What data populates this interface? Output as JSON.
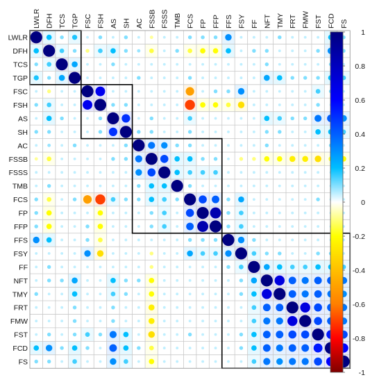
{
  "chart_data": {
    "type": "heatmap",
    "subtype": "correlation-circle-matrix",
    "variables": [
      "LWLR",
      "DFH",
      "TCS",
      "TGP",
      "FSC",
      "FSH",
      "AS",
      "SH",
      "AC",
      "FSSB",
      "FSSS",
      "TMB",
      "FCS",
      "FP",
      "FFP",
      "FFS",
      "FSY",
      "FF",
      "NFT",
      "TMY",
      "FRT",
      "FMW",
      "FST",
      "FCD",
      "FS"
    ],
    "matrix": [
      [
        1.0,
        0.2,
        0.1,
        0.18,
        0.05,
        0.1,
        0.05,
        0.1,
        0.05,
        -0.08,
        0.05,
        0.05,
        0.1,
        0.1,
        0.1,
        0.3,
        0.05,
        0.05,
        0.05,
        0.1,
        0.05,
        0.05,
        0.05,
        0.2,
        0.1
      ],
      [
        0.2,
        1.0,
        0.15,
        0.1,
        -0.1,
        0.15,
        0.2,
        0.1,
        0.08,
        -0.15,
        0.05,
        0.1,
        -0.15,
        -0.2,
        -0.2,
        0.2,
        0.05,
        0.1,
        0.1,
        0.05,
        0.05,
        0.05,
        0.1,
        0.3,
        0.1
      ],
      [
        0.1,
        0.15,
        1.0,
        0.25,
        0.05,
        0.05,
        0.1,
        0.05,
        0.05,
        0.05,
        0.05,
        0.05,
        0.05,
        0.05,
        0.05,
        0.05,
        0.05,
        0.05,
        0.1,
        0.05,
        0.05,
        0.05,
        0.05,
        0.1,
        0.05
      ],
      [
        0.18,
        0.1,
        0.25,
        1.0,
        0.05,
        0.05,
        0.05,
        0.05,
        0.1,
        0.05,
        0.05,
        0.05,
        0.1,
        0.05,
        0.05,
        0.05,
        0.05,
        0.05,
        0.25,
        0.2,
        0.1,
        0.1,
        0.1,
        0.2,
        0.15
      ],
      [
        0.05,
        -0.1,
        0.05,
        0.05,
        1.0,
        0.65,
        0.05,
        0.05,
        0.05,
        0.05,
        0.05,
        0.05,
        -0.5,
        0.05,
        0.1,
        0.1,
        0.3,
        0.05,
        0.05,
        0.05,
        0.05,
        0.05,
        0.15,
        0.1,
        0.05
      ],
      [
        0.1,
        0.15,
        0.05,
        0.05,
        0.65,
        1.0,
        0.1,
        0.1,
        0.05,
        0.05,
        0.05,
        0.05,
        -0.7,
        -0.2,
        -0.2,
        -0.15,
        -0.3,
        0.05,
        0.05,
        0.05,
        0.05,
        0.05,
        0.1,
        0.05,
        0.05
      ],
      [
        0.05,
        0.2,
        0.1,
        0.05,
        0.05,
        0.1,
        1.0,
        0.5,
        0.05,
        0.1,
        0.05,
        0.05,
        0.15,
        0.05,
        0.05,
        0.05,
        0.05,
        0.05,
        0.2,
        0.15,
        0.1,
        0.1,
        0.35,
        0.4,
        0.3
      ],
      [
        0.1,
        0.1,
        0.05,
        0.05,
        0.05,
        0.1,
        0.5,
        1.0,
        0.1,
        0.1,
        0.05,
        0.05,
        0.1,
        0.05,
        0.05,
        0.05,
        0.05,
        0.05,
        0.1,
        0.1,
        0.05,
        0.05,
        0.2,
        0.2,
        0.15
      ],
      [
        0.05,
        0.08,
        0.05,
        0.1,
        0.05,
        0.05,
        0.05,
        0.1,
        1.0,
        0.35,
        0.3,
        0.1,
        0.1,
        0.05,
        0.05,
        0.05,
        0.05,
        0.05,
        0.1,
        0.05,
        0.05,
        0.05,
        0.05,
        0.1,
        0.05
      ],
      [
        -0.08,
        -0.15,
        0.05,
        0.05,
        0.05,
        0.05,
        0.1,
        0.1,
        0.35,
        1.0,
        0.45,
        0.2,
        0.2,
        0.1,
        0.1,
        0.05,
        -0.1,
        -0.1,
        -0.2,
        -0.2,
        -0.25,
        -0.25,
        -0.3,
        -0.15,
        -0.2
      ],
      [
        0.05,
        0.05,
        0.05,
        0.05,
        0.05,
        0.05,
        0.05,
        0.05,
        0.3,
        0.45,
        1.0,
        0.2,
        0.15,
        0.15,
        0.15,
        0.05,
        0.05,
        0.05,
        0.05,
        0.05,
        0.05,
        0.05,
        0.05,
        0.05,
        0.05
      ],
      [
        0.05,
        0.1,
        0.05,
        0.05,
        0.05,
        0.05,
        0.05,
        0.05,
        0.1,
        0.2,
        0.2,
        1.0,
        0.1,
        0.05,
        0.05,
        0.05,
        0.05,
        0.05,
        0.05,
        0.05,
        0.05,
        0.05,
        0.05,
        0.05,
        0.05
      ],
      [
        0.1,
        -0.15,
        0.05,
        0.1,
        -0.5,
        -0.7,
        0.15,
        0.1,
        0.1,
        0.2,
        0.15,
        0.1,
        1.0,
        0.45,
        0.4,
        0.1,
        0.25,
        0.05,
        0.05,
        0.05,
        0.05,
        0.05,
        0.1,
        0.05,
        0.05
      ],
      [
        0.1,
        -0.2,
        0.05,
        0.05,
        0.05,
        -0.2,
        0.05,
        0.05,
        0.05,
        0.1,
        0.15,
        0.05,
        0.45,
        1.0,
        0.85,
        0.1,
        0.15,
        0.05,
        0.05,
        0.05,
        0.05,
        0.05,
        0.05,
        0.05,
        0.05
      ],
      [
        0.1,
        -0.2,
        0.05,
        0.05,
        0.1,
        -0.2,
        0.05,
        0.05,
        0.05,
        0.1,
        0.15,
        0.05,
        0.4,
        0.85,
        1.0,
        0.1,
        0.15,
        0.05,
        0.05,
        0.05,
        0.05,
        0.05,
        0.05,
        0.05,
        0.05
      ],
      [
        0.3,
        0.2,
        0.05,
        0.05,
        0.1,
        -0.15,
        0.05,
        0.05,
        0.05,
        0.05,
        0.05,
        0.05,
        0.1,
        0.1,
        0.1,
        1.0,
        0.3,
        0.1,
        0.05,
        0.05,
        0.05,
        0.05,
        0.05,
        0.05,
        0.05
      ],
      [
        0.05,
        0.05,
        0.05,
        0.05,
        0.3,
        -0.3,
        0.05,
        0.05,
        0.05,
        -0.1,
        0.05,
        0.05,
        0.25,
        0.15,
        0.15,
        0.3,
        1.0,
        0.15,
        0.1,
        0.1,
        0.05,
        0.05,
        0.1,
        0.1,
        0.05
      ],
      [
        0.05,
        0.1,
        0.05,
        0.05,
        0.05,
        0.05,
        0.05,
        0.05,
        0.05,
        -0.1,
        0.05,
        0.05,
        0.05,
        0.05,
        0.05,
        0.1,
        0.15,
        1.0,
        0.25,
        0.2,
        0.15,
        0.15,
        0.2,
        0.2,
        0.15
      ],
      [
        0.05,
        0.1,
        0.1,
        0.25,
        0.05,
        0.05,
        0.2,
        0.1,
        0.1,
        -0.2,
        0.05,
        0.05,
        0.05,
        0.05,
        0.05,
        0.05,
        0.1,
        0.25,
        1.0,
        0.7,
        0.4,
        0.35,
        0.4,
        0.4,
        0.35
      ],
      [
        0.1,
        0.05,
        0.05,
        0.2,
        0.05,
        0.05,
        0.15,
        0.1,
        0.05,
        -0.2,
        0.05,
        0.05,
        0.05,
        0.05,
        0.05,
        0.05,
        0.1,
        0.2,
        0.7,
        1.0,
        0.4,
        0.35,
        0.4,
        0.35,
        0.3
      ],
      [
        0.05,
        0.05,
        0.05,
        0.1,
        0.05,
        0.05,
        0.1,
        0.05,
        0.05,
        -0.25,
        0.05,
        0.05,
        0.05,
        0.05,
        0.05,
        0.05,
        0.05,
        0.15,
        0.4,
        0.4,
        1.0,
        0.7,
        0.45,
        0.4,
        0.35
      ],
      [
        0.05,
        0.05,
        0.05,
        0.1,
        0.05,
        0.05,
        0.1,
        0.05,
        0.05,
        -0.25,
        0.05,
        0.05,
        0.05,
        0.05,
        0.05,
        0.05,
        0.05,
        0.15,
        0.35,
        0.35,
        0.7,
        1.0,
        0.45,
        0.4,
        0.35
      ],
      [
        0.05,
        0.1,
        0.05,
        0.1,
        0.15,
        0.1,
        0.35,
        0.2,
        0.05,
        -0.3,
        0.05,
        0.05,
        0.1,
        0.05,
        0.05,
        0.05,
        0.1,
        0.2,
        0.4,
        0.4,
        0.45,
        0.45,
        1.0,
        0.55,
        0.45
      ],
      [
        0.2,
        0.3,
        0.1,
        0.2,
        0.1,
        0.05,
        0.4,
        0.2,
        0.1,
        -0.15,
        0.05,
        0.05,
        0.05,
        0.05,
        0.05,
        0.05,
        0.1,
        0.2,
        0.4,
        0.35,
        0.4,
        0.4,
        0.55,
        1.0,
        0.6
      ],
      [
        0.1,
        0.1,
        0.05,
        0.15,
        0.05,
        0.05,
        0.3,
        0.15,
        0.05,
        -0.2,
        0.05,
        0.05,
        0.05,
        0.05,
        0.05,
        0.05,
        0.05,
        0.15,
        0.35,
        0.3,
        0.35,
        0.35,
        0.45,
        0.6,
        1.0
      ]
    ],
    "clusters": [
      [
        0,
        3
      ],
      [
        4,
        7
      ],
      [
        8,
        14
      ],
      [
        15,
        24
      ]
    ],
    "value_range": [
      -1,
      1
    ],
    "colorbar": {
      "ticks": [
        "1",
        "0.8",
        "0.6",
        "0.4",
        "0.2",
        "0",
        "-0.2",
        "-0.4",
        "-0.6",
        "-0.8",
        "-1"
      ],
      "stops": [
        {
          "value": 1.0,
          "color": "#00007f"
        },
        {
          "value": 0.6,
          "color": "#0000ff"
        },
        {
          "value": 0.2,
          "color": "#00bfff"
        },
        {
          "value": 0.0,
          "color": "#ffffff"
        },
        {
          "value": -0.2,
          "color": "#ffff00"
        },
        {
          "value": -0.6,
          "color": "#ff7f00"
        },
        {
          "value": -0.8,
          "color": "#ff0000"
        },
        {
          "value": -1.0,
          "color": "#7f0000"
        }
      ],
      "placement": "right"
    },
    "grid": true,
    "title": "",
    "xlabel": "",
    "ylabel": ""
  }
}
